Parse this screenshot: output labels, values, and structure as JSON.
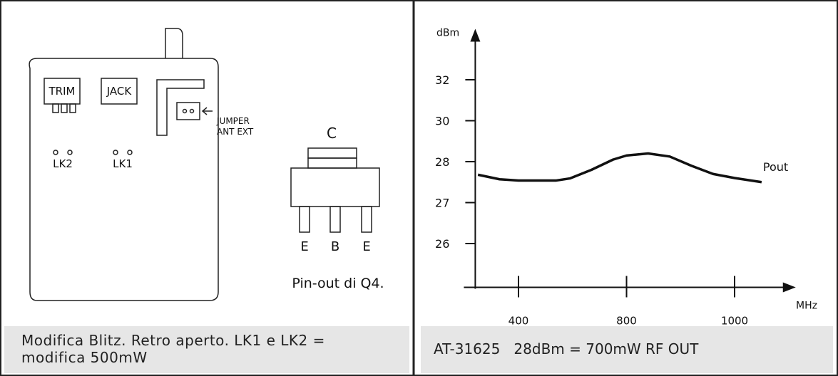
{
  "diagram": {
    "trim": "TRIM",
    "jack": "JACK",
    "jumper": [
      "JUMPER",
      "ANT EXT"
    ],
    "lk2": "LK2",
    "lk1": "LK1",
    "pin_c": "C",
    "pins": [
      "E",
      "B",
      "E"
    ],
    "pinout_caption": "Pin-out di Q4.",
    "caption": "Modifica Blitz. Retro aperto. LK1 e LK2 = modifica 500mW"
  },
  "chart_data": {
    "type": "line",
    "ylabel": "dBm",
    "xlabel": "MHz",
    "caption": "AT-31625   28dBm = 700mW RF OUT",
    "x": [
      250,
      330,
      400,
      540,
      590,
      670,
      750,
      800,
      840,
      880,
      920,
      960,
      1000,
      1050
    ],
    "series": [
      {
        "name": "Pout",
        "color": "#111111",
        "values": [
          27.68,
          27.57,
          27.54,
          27.54,
          27.59,
          27.8,
          28.1,
          28.3,
          28.4,
          28.25,
          27.9,
          27.7,
          27.6,
          27.5
        ]
      }
    ],
    "xlim": [
      240,
      1100
    ],
    "xticks": [
      400,
      800,
      1000
    ],
    "ylim": [
      25,
      34
    ],
    "yticks": [
      26,
      27,
      28,
      30,
      32
    ]
  }
}
